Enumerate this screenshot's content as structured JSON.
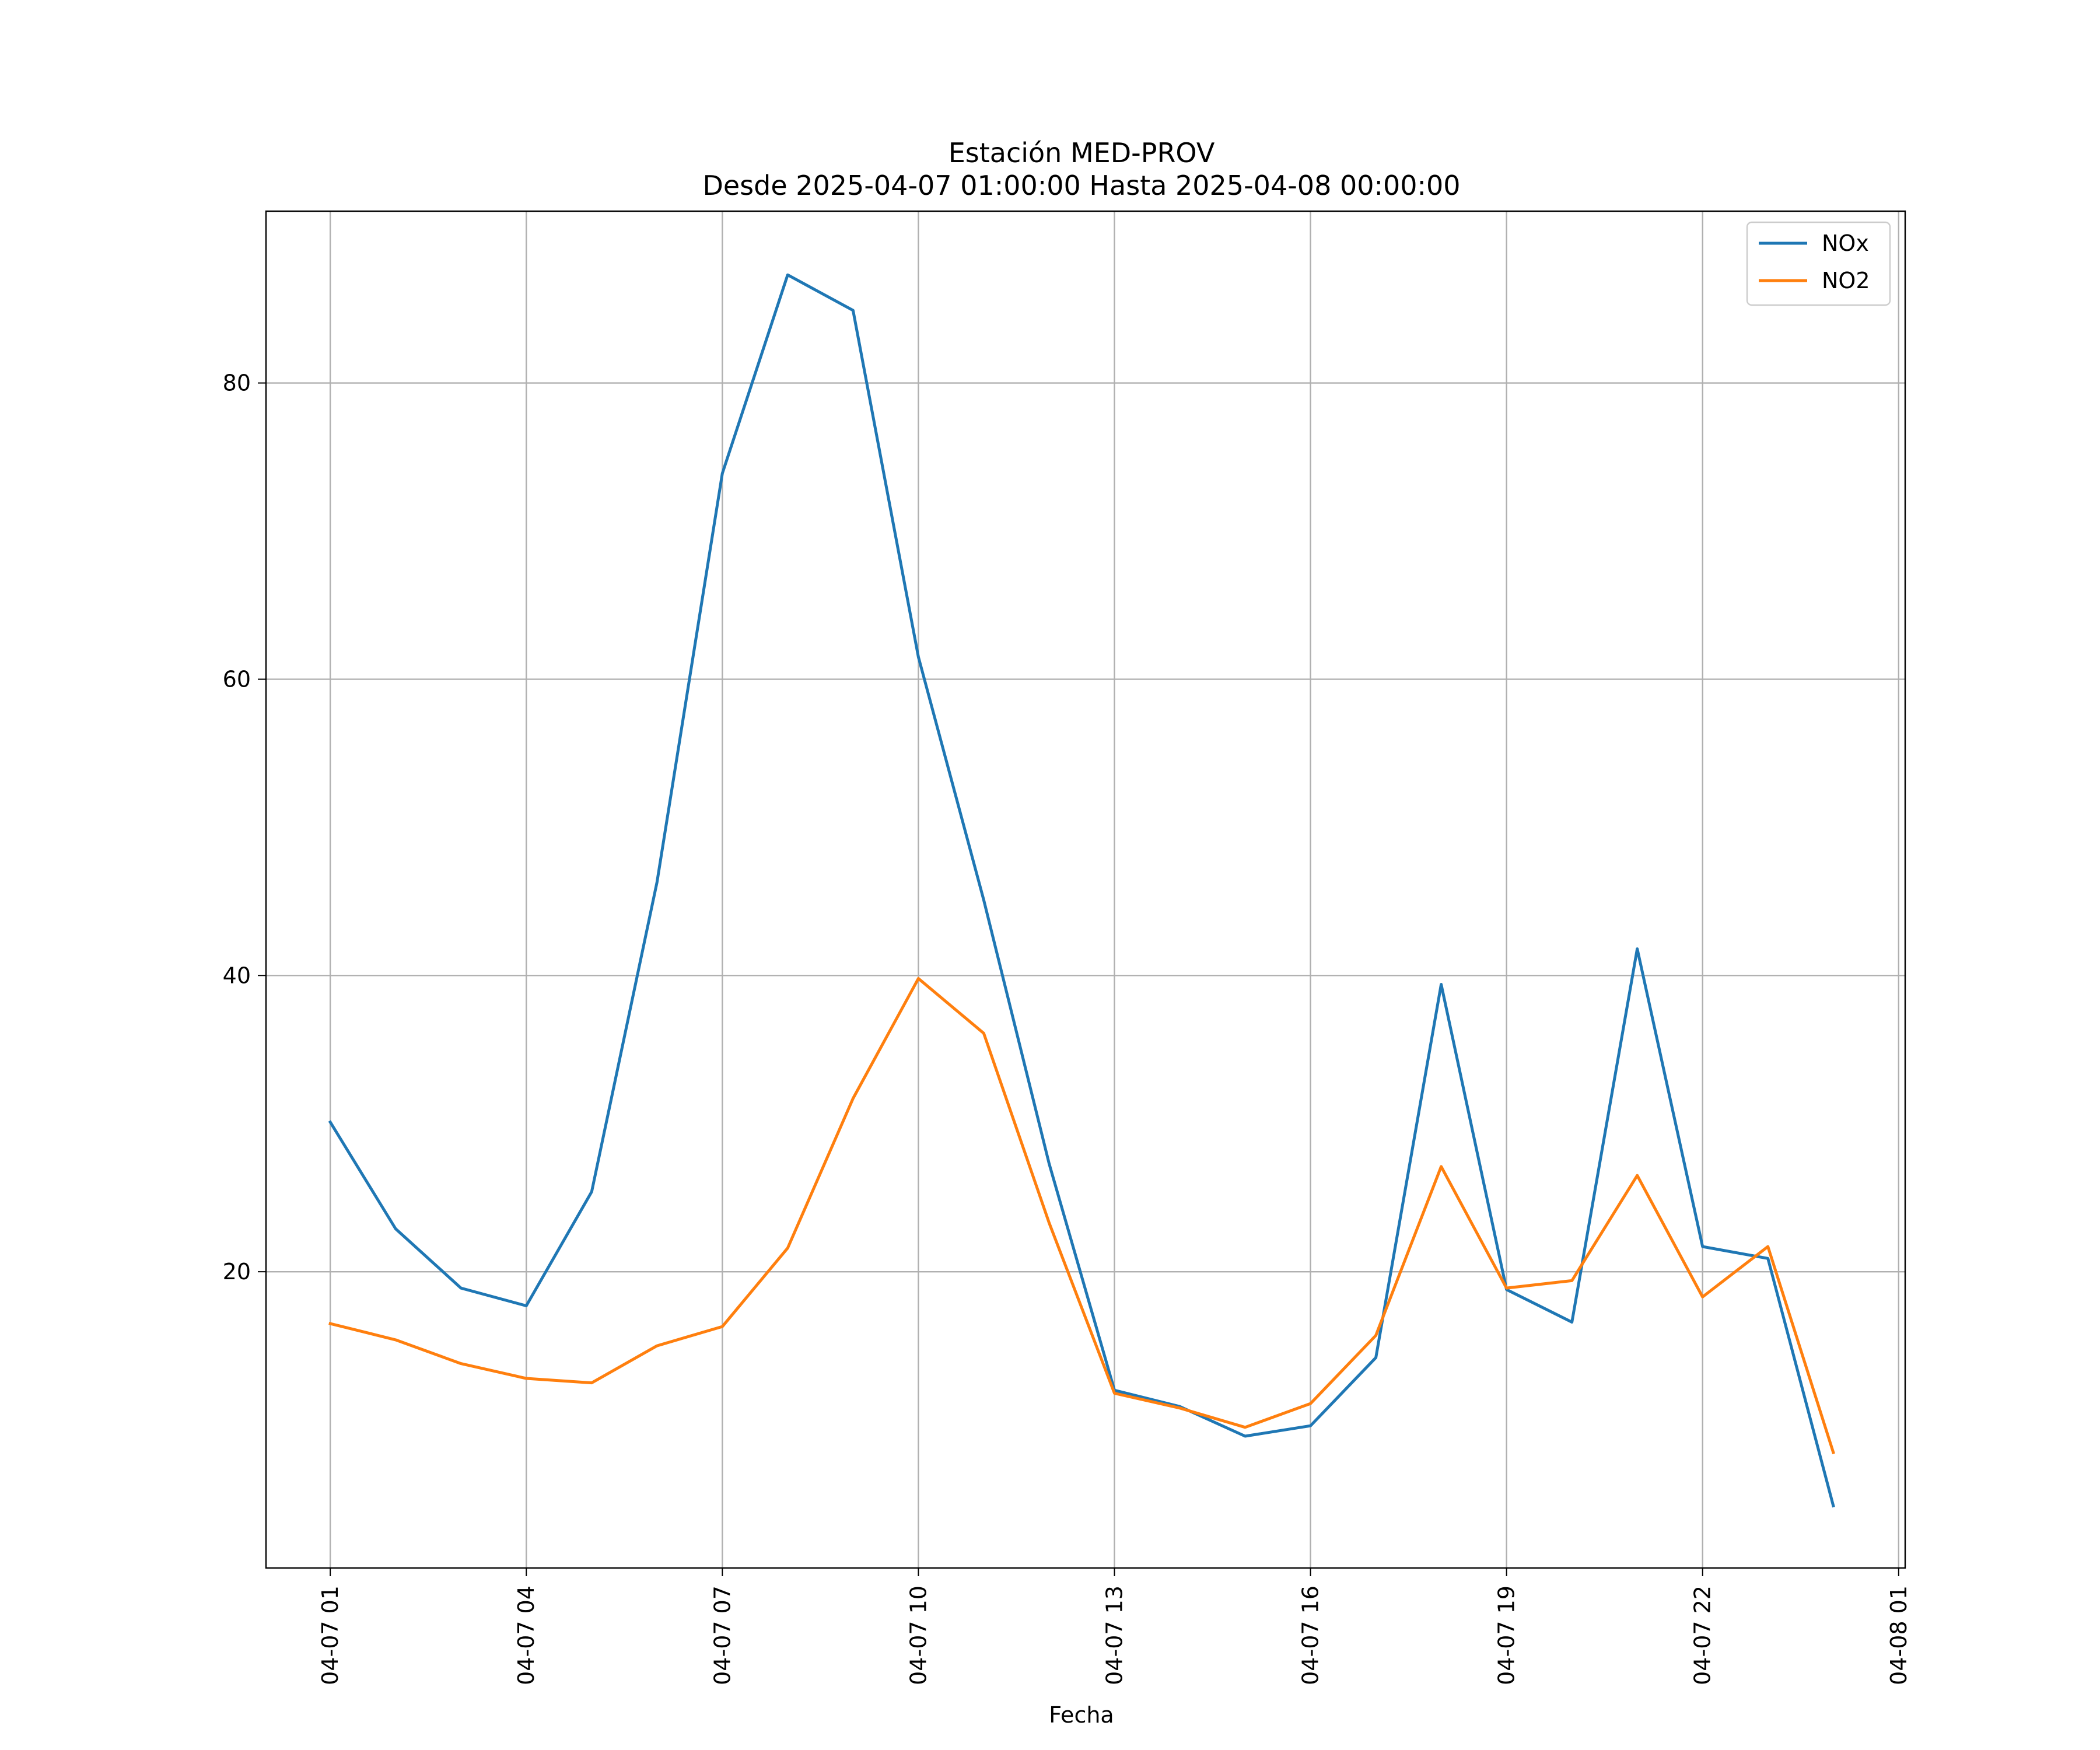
{
  "chart_data": {
    "type": "line",
    "title_line1": "Estación MED-PROV",
    "title_line2": "Desde 2025-04-07 01:00:00 Hasta 2025-04-08 00:00:00",
    "xlabel": "Fecha",
    "ylabel": "",
    "x": [
      "2025-04-07 01:00",
      "2025-04-07 02:00",
      "2025-04-07 03:00",
      "2025-04-07 04:00",
      "2025-04-07 05:00",
      "2025-04-07 06:00",
      "2025-04-07 07:00",
      "2025-04-07 08:00",
      "2025-04-07 09:00",
      "2025-04-07 10:00",
      "2025-04-07 11:00",
      "2025-04-07 12:00",
      "2025-04-07 13:00",
      "2025-04-07 14:00",
      "2025-04-07 15:00",
      "2025-04-07 16:00",
      "2025-04-07 17:00",
      "2025-04-07 18:00",
      "2025-04-07 19:00",
      "2025-04-07 20:00",
      "2025-04-07 21:00",
      "2025-04-07 22:00",
      "2025-04-07 23:00",
      "2025-04-08 00:00"
    ],
    "series": [
      {
        "name": "NOx",
        "color": "#1f77b4",
        "values": [
          30.1,
          22.9,
          18.9,
          17.7,
          25.4,
          46.3,
          73.9,
          87.3,
          84.9,
          61.5,
          45.1,
          27.3,
          12.0,
          10.9,
          8.9,
          9.6,
          14.2,
          39.4,
          18.8,
          16.6,
          41.8,
          21.7,
          20.9,
          4.2
        ]
      },
      {
        "name": "NO2",
        "color": "#ff7f0e",
        "values": [
          16.5,
          15.4,
          13.8,
          12.8,
          12.5,
          15.0,
          16.3,
          21.6,
          31.7,
          39.8,
          36.1,
          23.3,
          11.8,
          10.8,
          9.5,
          11.1,
          15.7,
          27.1,
          18.9,
          19.4,
          26.5,
          18.3,
          21.7,
          7.8
        ]
      }
    ],
    "x_ticks": [
      "2025-04-07 01:00",
      "2025-04-07 04:00",
      "2025-04-07 07:00",
      "2025-04-07 10:00",
      "2025-04-07 13:00",
      "2025-04-07 16:00",
      "2025-04-07 19:00",
      "2025-04-07 22:00",
      "2025-04-08 01:00"
    ],
    "x_tick_labels": [
      "04-07 01",
      "04-07 04",
      "04-07 07",
      "04-07 10",
      "04-07 13",
      "04-07 16",
      "04-07 19",
      "04-07 22",
      "04-08 01"
    ],
    "xlim": [
      "2025-04-07 00:01",
      "2025-04-08 01:06"
    ],
    "y_ticks": [
      20,
      40,
      60,
      80
    ],
    "y_tick_labels": [
      "20",
      "40",
      "60",
      "80"
    ],
    "ylim": [
      0.0,
      91.6
    ],
    "grid": true,
    "legend": {
      "position": "upper-right",
      "entries": [
        "NOx",
        "NO2"
      ]
    }
  }
}
